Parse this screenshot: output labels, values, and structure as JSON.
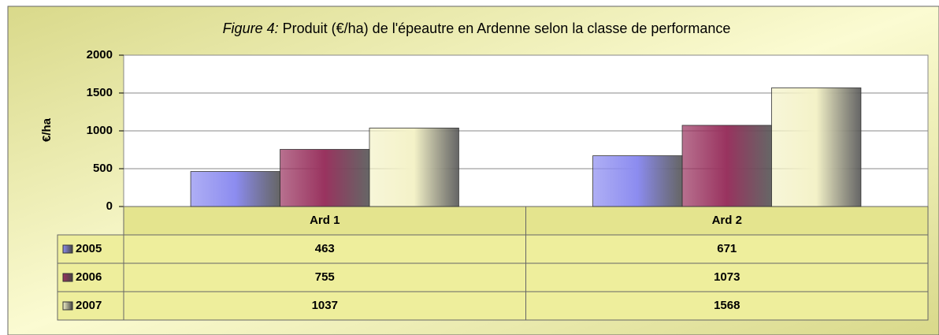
{
  "chart_data": {
    "type": "bar",
    "title": [
      "Figure 4:",
      "Produit (€/ha) de l'épeautre en Ardenne selon la classe de performance"
    ],
    "y_label": "€/ha",
    "categories": [
      "Ard 1",
      "Ard 2"
    ],
    "series": [
      {
        "name": "2005",
        "color": "#8c8cf0",
        "values": [
          463,
          671
        ]
      },
      {
        "name": "2006",
        "color": "#99335f",
        "values": [
          755,
          1073
        ]
      },
      {
        "name": "2007",
        "color": "#f4f2c8",
        "values": [
          1037,
          1568
        ]
      }
    ],
    "ylim": [
      0,
      2000
    ],
    "yticks": [
      0,
      500,
      1000,
      1500,
      2000
    ],
    "grid": true
  }
}
